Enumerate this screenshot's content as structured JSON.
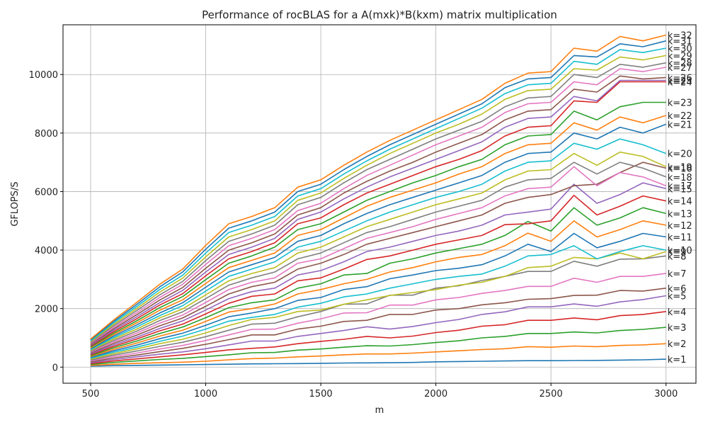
{
  "chart_data": {
    "type": "line",
    "title": "Performance of rocBLAS for a A(mxk)*B(kxm) matrix multiplication",
    "xlabel": "m",
    "ylabel": "GFLOPS/S",
    "xlim": [
      380,
      3130
    ],
    "ylim": [
      -550,
      11700
    ],
    "xticks": [
      500,
      1000,
      1500,
      2000,
      2500,
      3000
    ],
    "yticks": [
      0,
      2000,
      4000,
      6000,
      8000,
      10000
    ],
    "grid": true,
    "x": [
      500,
      600,
      700,
      800,
      900,
      1000,
      1100,
      1200,
      1300,
      1400,
      1500,
      1600,
      1700,
      1800,
      1900,
      2000,
      2100,
      2200,
      2300,
      2400,
      2500,
      2600,
      2700,
      2800,
      2900,
      3000
    ],
    "series": [
      {
        "name": "k=1",
        "color": "#1f77b4",
        "values": [
          30,
          50,
          60,
          70,
          80,
          90,
          100,
          110,
          115,
          120,
          130,
          140,
          145,
          150,
          160,
          180,
          190,
          200,
          210,
          220,
          220,
          225,
          230,
          240,
          250,
          270
        ]
      },
      {
        "name": "k=2",
        "color": "#ff7f0e",
        "values": [
          60,
          100,
          130,
          150,
          170,
          200,
          250,
          290,
          310,
          350,
          380,
          420,
          450,
          450,
          480,
          520,
          560,
          600,
          630,
          700,
          680,
          720,
          700,
          740,
          760,
          800
        ]
      },
      {
        "name": "k=3",
        "color": "#2ca02c",
        "values": [
          90,
          160,
          210,
          260,
          300,
          360,
          420,
          490,
          500,
          580,
          620,
          680,
          730,
          720,
          770,
          840,
          900,
          1000,
          1050,
          1150,
          1150,
          1200,
          1170,
          1250,
          1290,
          1360
        ]
      },
      {
        "name": "k=4",
        "color": "#d62728",
        "values": [
          120,
          210,
          280,
          350,
          420,
          500,
          590,
          640,
          690,
          800,
          880,
          950,
          1050,
          1000,
          1060,
          1180,
          1260,
          1400,
          1450,
          1600,
          1600,
          1680,
          1620,
          1760,
          1800,
          1900
        ]
      },
      {
        "name": "k=5",
        "color": "#9467bd",
        "values": [
          150,
          260,
          350,
          440,
          520,
          630,
          760,
          890,
          890,
          1050,
          1150,
          1250,
          1380,
          1300,
          1390,
          1520,
          1630,
          1800,
          1890,
          2060,
          2060,
          2160,
          2080,
          2230,
          2310,
          2440
        ]
      },
      {
        "name": "k=6",
        "color": "#8c564b",
        "values": [
          180,
          310,
          410,
          530,
          640,
          780,
          940,
          1100,
          1100,
          1300,
          1400,
          1560,
          1600,
          1800,
          1800,
          1950,
          2000,
          2130,
          2200,
          2320,
          2340,
          2450,
          2460,
          2620,
          2600,
          2700
        ]
      },
      {
        "name": "k=7",
        "color": "#e377c2",
        "values": [
          210,
          360,
          480,
          620,
          740,
          910,
          1100,
          1290,
          1300,
          1500,
          1650,
          1850,
          1860,
          2120,
          2120,
          2300,
          2380,
          2520,
          2620,
          2760,
          2760,
          3040,
          2900,
          3100,
          3100,
          3200
        ]
      },
      {
        "name": "k=8",
        "color": "#7f7f7f",
        "values": [
          240,
          410,
          550,
          710,
          850,
          1040,
          1260,
          1470,
          1500,
          1720,
          1900,
          2150,
          2160,
          2460,
          2460,
          2700,
          2780,
          2960,
          3100,
          3270,
          3270,
          3620,
          3450,
          3690,
          3700,
          3800
        ]
      },
      {
        "name": "k=9",
        "color": "#bcbd22",
        "values": [
          270,
          460,
          620,
          800,
          950,
          1170,
          1420,
          1630,
          1700,
          1900,
          1950,
          2150,
          2300,
          2450,
          2550,
          2650,
          2800,
          2900,
          3100,
          3400,
          3450,
          3750,
          3700,
          3900,
          3700,
          3950
        ]
      },
      {
        "name": "k=10",
        "color": "#17becf",
        "values": [
          300,
          510,
          680,
          880,
          1060,
          1300,
          1570,
          1700,
          1800,
          2050,
          2180,
          2400,
          2500,
          2700,
          2850,
          3000,
          3100,
          3180,
          3450,
          3800,
          3850,
          4150,
          3700,
          3950,
          4150,
          4000
        ]
      },
      {
        "name": "k=11",
        "color": "#1f77b4",
        "values": [
          330,
          560,
          750,
          970,
          1160,
          1430,
          1720,
          1850,
          2000,
          2280,
          2380,
          2650,
          2750,
          3020,
          3150,
          3300,
          3380,
          3500,
          3800,
          4200,
          3950,
          4570,
          4080,
          4300,
          4570,
          4450
        ]
      },
      {
        "name": "k=12",
        "color": "#ff7f0e",
        "values": [
          360,
          610,
          820,
          1060,
          1260,
          1560,
          1880,
          2000,
          2160,
          2500,
          2650,
          2850,
          3000,
          3250,
          3400,
          3600,
          3750,
          3850,
          4150,
          4580,
          4300,
          5000,
          4450,
          4700,
          5000,
          4850
        ]
      },
      {
        "name": "k=13",
        "color": "#2ca02c",
        "values": [
          390,
          660,
          890,
          1150,
          1370,
          1690,
          2030,
          2200,
          2300,
          2700,
          2850,
          3150,
          3200,
          3550,
          3700,
          3900,
          4050,
          4200,
          4500,
          4980,
          4650,
          5450,
          4850,
          5100,
          5450,
          5250
        ]
      },
      {
        "name": "k=14",
        "color": "#d62728",
        "values": [
          420,
          710,
          960,
          1240,
          1470,
          1820,
          2180,
          2420,
          2500,
          2950,
          3050,
          3350,
          3680,
          3800,
          4000,
          4200,
          4350,
          4500,
          4870,
          4900,
          5000,
          5870,
          5200,
          5500,
          5850,
          5680
        ]
      },
      {
        "name": "k=15",
        "color": "#9467bd",
        "values": [
          450,
          760,
          1020,
          1320,
          1580,
          1950,
          2340,
          2580,
          2700,
          3150,
          3300,
          3600,
          3950,
          4100,
          4300,
          4500,
          4650,
          4850,
          5200,
          5300,
          5400,
          6250,
          5600,
          5900,
          6300,
          6100
        ]
      },
      {
        "name": "k=16",
        "color": "#8c564b",
        "values": [
          480,
          810,
          1090,
          1410,
          1680,
          2080,
          2500,
          2750,
          2900,
          3350,
          3550,
          3850,
          4200,
          4400,
          4600,
          4800,
          5000,
          5200,
          5600,
          5800,
          5900,
          6200,
          6250,
          6650,
          7000,
          6800
        ]
      },
      {
        "name": "k=17",
        "color": "#e377c2",
        "values": [
          510,
          860,
          1160,
          1500,
          1780,
          2210,
          2650,
          2900,
          3050,
          3550,
          3700,
          4050,
          4400,
          4600,
          4800,
          5050,
          5250,
          5450,
          5850,
          6100,
          6150,
          6850,
          6200,
          6650,
          6500,
          6200
        ]
      },
      {
        "name": "k=18",
        "color": "#7f7f7f",
        "values": [
          540,
          910,
          1230,
          1590,
          1890,
          2340,
          2800,
          3050,
          3250,
          3700,
          3900,
          4250,
          4600,
          4800,
          5050,
          5300,
          5500,
          5700,
          6150,
          6400,
          6450,
          7000,
          6600,
          7000,
          6800,
          6500
        ]
      },
      {
        "name": "k=19",
        "color": "#bcbd22",
        "values": [
          570,
          960,
          1300,
          1680,
          1990,
          2470,
          2950,
          3200,
          3400,
          3900,
          4100,
          4450,
          4800,
          5050,
          5300,
          5550,
          5750,
          5950,
          6400,
          6700,
          6750,
          7300,
          6900,
          7350,
          7200,
          6850
        ]
      },
      {
        "name": "k=20",
        "color": "#17becf",
        "values": [
          600,
          1010,
          1370,
          1760,
          2100,
          2600,
          3100,
          3350,
          3600,
          4100,
          4300,
          4650,
          5000,
          5300,
          5550,
          5800,
          6000,
          6250,
          6700,
          7000,
          7050,
          7650,
          7450,
          7800,
          7600,
          7300
        ]
      },
      {
        "name": "k=21",
        "color": "#1f77b4",
        "values": [
          630,
          1060,
          1440,
          1850,
          2200,
          2730,
          3250,
          3500,
          3750,
          4300,
          4500,
          4900,
          5250,
          5550,
          5800,
          6050,
          6300,
          6550,
          7000,
          7300,
          7350,
          8000,
          7800,
          8200,
          8000,
          8300
        ]
      },
      {
        "name": "k=22",
        "color": "#ff7f0e",
        "values": [
          660,
          1110,
          1510,
          1940,
          2300,
          2860,
          3400,
          3650,
          3900,
          4500,
          4700,
          5100,
          5500,
          5800,
          6050,
          6300,
          6600,
          6850,
          7300,
          7600,
          7650,
          8350,
          8100,
          8550,
          8350,
          8600
        ]
      },
      {
        "name": "k=23",
        "color": "#2ca02c",
        "values": [
          690,
          1160,
          1580,
          2030,
          2410,
          2990,
          3550,
          3800,
          4100,
          4700,
          4900,
          5300,
          5700,
          6000,
          6300,
          6550,
          6850,
          7100,
          7600,
          7900,
          7950,
          8750,
          8450,
          8900,
          9050,
          9050
        ]
      },
      {
        "name": "k=24",
        "color": "#d62728",
        "values": [
          720,
          1210,
          1650,
          2120,
          2510,
          3120,
          3700,
          3950,
          4250,
          4900,
          5100,
          5550,
          5950,
          6250,
          6550,
          6850,
          7100,
          7400,
          7900,
          8200,
          8250,
          9100,
          9050,
          9750,
          9750,
          9750
        ]
      },
      {
        "name": "k=25",
        "color": "#9467bd",
        "values": [
          750,
          1260,
          1720,
          2200,
          2620,
          3250,
          3850,
          4100,
          4400,
          5050,
          5300,
          5750,
          6150,
          6500,
          6800,
          7100,
          7400,
          7700,
          8200,
          8500,
          8550,
          9250,
          9100,
          9800,
          9800,
          9800
        ]
      },
      {
        "name": "k=26",
        "color": "#8c564b",
        "values": [
          780,
          1310,
          1790,
          2290,
          2720,
          3380,
          4000,
          4250,
          4550,
          5200,
          5450,
          5950,
          6350,
          6700,
          7000,
          7350,
          7650,
          7950,
          8450,
          8750,
          8800,
          9500,
          9400,
          9950,
          9850,
          9900
        ]
      },
      {
        "name": "k=27",
        "color": "#e377c2",
        "values": [
          810,
          1360,
          1860,
          2380,
          2830,
          3510,
          4150,
          4400,
          4700,
          5350,
          5600,
          6100,
          6550,
          6900,
          7250,
          7600,
          7900,
          8200,
          8700,
          9000,
          9050,
          9750,
          9650,
          10200,
          10100,
          10250
        ]
      },
      {
        "name": "k=28",
        "color": "#7f7f7f",
        "values": [
          840,
          1410,
          1930,
          2470,
          2930,
          3640,
          4300,
          4550,
          4850,
          5550,
          5800,
          6300,
          6750,
          7100,
          7450,
          7800,
          8100,
          8400,
          8900,
          9200,
          9250,
          10000,
          9900,
          10350,
          10250,
          10400
        ]
      },
      {
        "name": "k=29",
        "color": "#bcbd22",
        "values": [
          870,
          1460,
          2000,
          2560,
          3040,
          3770,
          4450,
          4700,
          5000,
          5700,
          5950,
          6450,
          6900,
          7300,
          7650,
          8000,
          8300,
          8650,
          9150,
          9450,
          9500,
          10200,
          10150,
          10600,
          10500,
          10650
        ]
      },
      {
        "name": "k=30",
        "color": "#17becf",
        "values": [
          900,
          1510,
          2070,
          2650,
          3140,
          3900,
          4600,
          4850,
          5150,
          5850,
          6100,
          6600,
          7050,
          7450,
          7800,
          8150,
          8500,
          8850,
          9350,
          9650,
          9700,
          10450,
          10350,
          10850,
          10750,
          10900
        ]
      },
      {
        "name": "k=31",
        "color": "#1f77b4",
        "values": [
          930,
          1560,
          2140,
          2740,
          3250,
          4030,
          4750,
          5000,
          5300,
          6000,
          6250,
          6750,
          7200,
          7600,
          7950,
          8300,
          8650,
          9000,
          9550,
          9850,
          9900,
          10650,
          10600,
          11050,
          10950,
          11150
        ]
      },
      {
        "name": "k=32",
        "color": "#ff7f0e",
        "values": [
          960,
          1610,
          2210,
          2830,
          3350,
          4160,
          4900,
          5150,
          5450,
          6150,
          6400,
          6900,
          7350,
          7750,
          8100,
          8450,
          8800,
          9150,
          9700,
          10050,
          10100,
          10900,
          10800,
          11300,
          11150,
          11350
        ]
      }
    ]
  }
}
